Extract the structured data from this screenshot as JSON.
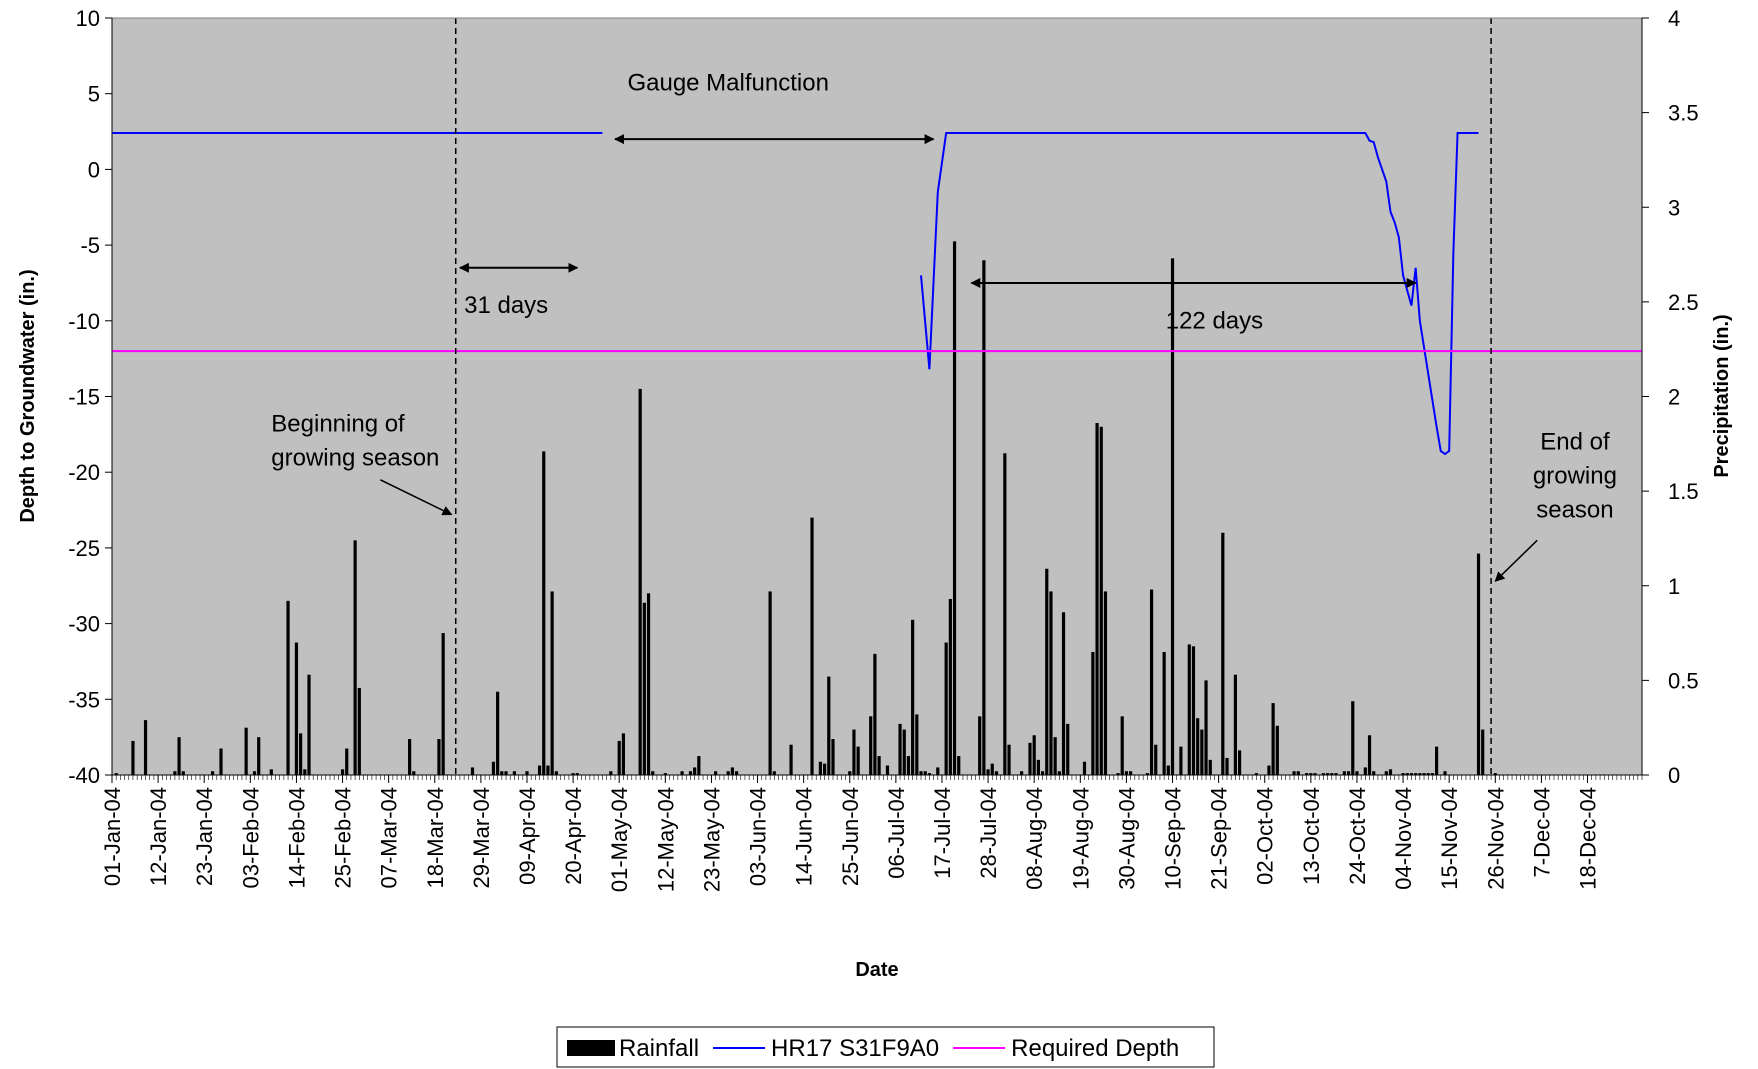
{
  "chart_data": {
    "type": "bar+line",
    "title": "",
    "xlabel": "Date",
    "ylabel_left": "Depth to Groundwater (in.)",
    "ylabel_right": "Precipitation (in.)",
    "x_range": [
      "2004-01-01",
      "2004-12-31"
    ],
    "ylim_left": [
      -40,
      10
    ],
    "ylim_right": [
      0,
      4
    ],
    "yticks_left": [
      10,
      5,
      0,
      -5,
      -10,
      -15,
      -20,
      -25,
      -30,
      -35,
      -40
    ],
    "yticks_right": [
      "4",
      "3.5",
      "3",
      "2.5",
      "2",
      "1.5",
      "1",
      "0.5",
      "0"
    ],
    "xtick_labels": [
      "01-Jan-04",
      "12-Jan-04",
      "23-Jan-04",
      "03-Feb-04",
      "14-Feb-04",
      "25-Feb-04",
      "07-Mar-04",
      "18-Mar-04",
      "29-Mar-04",
      "09-Apr-04",
      "20-Apr-04",
      "01-May-04",
      "12-May-04",
      "23-May-04",
      "03-Jun-04",
      "14-Jun-04",
      "25-Jun-04",
      "06-Jul-04",
      "17-Jul-04",
      "28-Jul-04",
      "08-Aug-04",
      "19-Aug-04",
      "30-Aug-04",
      "10-Sep-04",
      "21-Sep-04",
      "02-Oct-04",
      "13-Oct-04",
      "24-Oct-04",
      "04-Nov-04",
      "15-Nov-04",
      "26-Nov-04",
      "7-Dec-04",
      "18-Dec-04"
    ],
    "xtick_dates": [
      "2004-01-01",
      "2004-01-12",
      "2004-01-23",
      "2004-02-03",
      "2004-02-14",
      "2004-02-25",
      "2004-03-07",
      "2004-03-18",
      "2004-03-29",
      "2004-04-09",
      "2004-04-20",
      "2004-05-01",
      "2004-05-12",
      "2004-05-23",
      "2004-06-03",
      "2004-06-14",
      "2004-06-25",
      "2004-07-06",
      "2004-07-17",
      "2004-07-28",
      "2004-08-08",
      "2004-08-19",
      "2004-08-30",
      "2004-09-10",
      "2004-09-21",
      "2004-10-02",
      "2004-10-13",
      "2004-10-24",
      "2004-11-04",
      "2004-11-15",
      "2004-11-26",
      "2004-12-07",
      "2004-12-18"
    ],
    "grid": false,
    "legend_position": "bottom",
    "series": [
      {
        "name": "Rainfall",
        "type": "bar",
        "axis": "right",
        "color": "#000000",
        "points": [
          [
            "2004-01-02",
            0.01
          ],
          [
            "2004-01-06",
            0.18
          ],
          [
            "2004-01-09",
            0.29
          ],
          [
            "2004-01-16",
            0.02
          ],
          [
            "2004-01-17",
            0.2
          ],
          [
            "2004-01-18",
            0.02
          ],
          [
            "2004-01-25",
            0.02
          ],
          [
            "2004-01-27",
            0.14
          ],
          [
            "2004-02-02",
            0.25
          ],
          [
            "2004-02-04",
            0.02
          ],
          [
            "2004-02-05",
            0.2
          ],
          [
            "2004-02-08",
            0.03
          ],
          [
            "2004-02-12",
            0.92
          ],
          [
            "2004-02-14",
            0.7
          ],
          [
            "2004-02-15",
            0.22
          ],
          [
            "2004-02-16",
            0.03
          ],
          [
            "2004-02-17",
            0.53
          ],
          [
            "2004-02-25",
            0.03
          ],
          [
            "2004-02-26",
            0.14
          ],
          [
            "2004-02-28",
            1.24
          ],
          [
            "2004-02-29",
            0.46
          ],
          [
            "2004-03-12",
            0.19
          ],
          [
            "2004-03-13",
            0.02
          ],
          [
            "2004-03-19",
            0.19
          ],
          [
            "2004-03-20",
            0.75
          ],
          [
            "2004-03-27",
            0.04
          ],
          [
            "2004-04-01",
            0.07
          ],
          [
            "2004-04-02",
            0.44
          ],
          [
            "2004-04-03",
            0.02
          ],
          [
            "2004-04-04",
            0.02
          ],
          [
            "2004-04-06",
            0.02
          ],
          [
            "2004-04-09",
            0.02
          ],
          [
            "2004-04-12",
            0.05
          ],
          [
            "2004-04-13",
            1.71
          ],
          [
            "2004-04-14",
            0.05
          ],
          [
            "2004-04-15",
            0.97
          ],
          [
            "2004-04-16",
            0.02
          ],
          [
            "2004-04-20",
            0.01
          ],
          [
            "2004-04-21",
            0.01
          ],
          [
            "2004-04-29",
            0.02
          ],
          [
            "2004-05-01",
            0.18
          ],
          [
            "2004-05-02",
            0.22
          ],
          [
            "2004-05-06",
            2.04
          ],
          [
            "2004-05-07",
            0.91
          ],
          [
            "2004-05-08",
            0.96
          ],
          [
            "2004-05-09",
            0.02
          ],
          [
            "2004-05-12",
            0.01
          ],
          [
            "2004-05-16",
            0.02
          ],
          [
            "2004-05-18",
            0.02
          ],
          [
            "2004-05-19",
            0.04
          ],
          [
            "2004-05-20",
            0.1
          ],
          [
            "2004-05-24",
            0.02
          ],
          [
            "2004-05-27",
            0.02
          ],
          [
            "2004-05-28",
            0.04
          ],
          [
            "2004-05-29",
            0.02
          ],
          [
            "2004-06-06",
            0.97
          ],
          [
            "2004-06-07",
            0.02
          ],
          [
            "2004-06-11",
            0.16
          ],
          [
            "2004-06-16",
            1.36
          ],
          [
            "2004-06-18",
            0.07
          ],
          [
            "2004-06-19",
            0.06
          ],
          [
            "2004-06-20",
            0.52
          ],
          [
            "2004-06-21",
            0.19
          ],
          [
            "2004-06-25",
            0.02
          ],
          [
            "2004-06-26",
            0.24
          ],
          [
            "2004-06-27",
            0.15
          ],
          [
            "2004-06-30",
            0.31
          ],
          [
            "2004-07-01",
            0.64
          ],
          [
            "2004-07-02",
            0.1
          ],
          [
            "2004-07-04",
            0.05
          ],
          [
            "2004-07-07",
            0.27
          ],
          [
            "2004-07-08",
            0.24
          ],
          [
            "2004-07-09",
            0.1
          ],
          [
            "2004-07-10",
            0.82
          ],
          [
            "2004-07-11",
            0.32
          ],
          [
            "2004-07-12",
            0.02
          ],
          [
            "2004-07-13",
            0.02
          ],
          [
            "2004-07-14",
            0.01
          ],
          [
            "2004-07-16",
            0.04
          ],
          [
            "2004-07-18",
            0.7
          ],
          [
            "2004-07-19",
            0.93
          ],
          [
            "2004-07-20",
            2.82
          ],
          [
            "2004-07-21",
            0.1
          ],
          [
            "2004-07-26",
            0.31
          ],
          [
            "2004-07-27",
            2.72
          ],
          [
            "2004-07-28",
            0.03
          ],
          [
            "2004-07-29",
            0.06
          ],
          [
            "2004-07-30",
            0.02
          ],
          [
            "2004-08-01",
            1.7
          ],
          [
            "2004-08-02",
            0.16
          ],
          [
            "2004-08-05",
            0.02
          ],
          [
            "2004-08-07",
            0.17
          ],
          [
            "2004-08-08",
            0.21
          ],
          [
            "2004-08-09",
            0.08
          ],
          [
            "2004-08-10",
            0.02
          ],
          [
            "2004-08-11",
            1.09
          ],
          [
            "2004-08-12",
            0.97
          ],
          [
            "2004-08-13",
            0.2
          ],
          [
            "2004-08-14",
            0.02
          ],
          [
            "2004-08-15",
            0.86
          ],
          [
            "2004-08-16",
            0.27
          ],
          [
            "2004-08-20",
            0.07
          ],
          [
            "2004-08-22",
            0.65
          ],
          [
            "2004-08-23",
            1.86
          ],
          [
            "2004-08-24",
            1.84
          ],
          [
            "2004-08-25",
            0.97
          ],
          [
            "2004-08-28",
            0.01
          ],
          [
            "2004-08-29",
            0.31
          ],
          [
            "2004-08-30",
            0.02
          ],
          [
            "2004-08-31",
            0.02
          ],
          [
            "2004-09-04",
            0.01
          ],
          [
            "2004-09-05",
            0.98
          ],
          [
            "2004-09-06",
            0.16
          ],
          [
            "2004-09-08",
            0.65
          ],
          [
            "2004-09-09",
            0.05
          ],
          [
            "2004-09-10",
            2.73
          ],
          [
            "2004-09-12",
            0.15
          ],
          [
            "2004-09-14",
            0.69
          ],
          [
            "2004-09-15",
            0.68
          ],
          [
            "2004-09-16",
            0.3
          ],
          [
            "2004-09-17",
            0.24
          ],
          [
            "2004-09-18",
            0.5
          ],
          [
            "2004-09-19",
            0.08
          ],
          [
            "2004-09-22",
            1.28
          ],
          [
            "2004-09-23",
            0.09
          ],
          [
            "2004-09-25",
            0.53
          ],
          [
            "2004-09-26",
            0.13
          ],
          [
            "2004-09-30",
            0.01
          ],
          [
            "2004-10-03",
            0.05
          ],
          [
            "2004-10-04",
            0.38
          ],
          [
            "2004-10-05",
            0.26
          ],
          [
            "2004-10-09",
            0.02
          ],
          [
            "2004-10-10",
            0.02
          ],
          [
            "2004-10-12",
            0.01
          ],
          [
            "2004-10-13",
            0.01
          ],
          [
            "2004-10-14",
            0.01
          ],
          [
            "2004-10-16",
            0.01
          ],
          [
            "2004-10-17",
            0.01
          ],
          [
            "2004-10-18",
            0.01
          ],
          [
            "2004-10-19",
            0.01
          ],
          [
            "2004-10-21",
            0.02
          ],
          [
            "2004-10-22",
            0.02
          ],
          [
            "2004-10-23",
            0.39
          ],
          [
            "2004-10-24",
            0.02
          ],
          [
            "2004-10-26",
            0.04
          ],
          [
            "2004-10-27",
            0.21
          ],
          [
            "2004-10-28",
            0.02
          ],
          [
            "2004-10-31",
            0.02
          ],
          [
            "2004-11-01",
            0.03
          ],
          [
            "2004-11-04",
            0.01
          ],
          [
            "2004-11-05",
            0.01
          ],
          [
            "2004-11-06",
            0.01
          ],
          [
            "2004-11-07",
            0.01
          ],
          [
            "2004-11-08",
            0.01
          ],
          [
            "2004-11-09",
            0.01
          ],
          [
            "2004-11-10",
            0.01
          ],
          [
            "2004-11-11",
            0.01
          ],
          [
            "2004-11-12",
            0.15
          ],
          [
            "2004-11-14",
            0.02
          ],
          [
            "2004-11-22",
            1.17
          ],
          [
            "2004-11-23",
            0.24
          ],
          [
            "2004-11-26",
            0.01
          ]
        ]
      },
      {
        "name": "HR17 S31F9A0",
        "type": "line",
        "axis": "left",
        "color": "#0000ff",
        "segments": [
          [
            [
              "2004-01-01",
              2.4
            ],
            [
              "2004-04-27",
              2.4
            ]
          ],
          [
            [
              "2004-07-12",
              -7.0
            ],
            [
              "2004-07-14",
              -13.2
            ],
            [
              "2004-07-16",
              -1.5
            ],
            [
              "2004-07-18",
              2.4
            ],
            [
              "2004-10-26",
              2.4
            ],
            [
              "2004-10-27",
              1.9
            ],
            [
              "2004-10-28",
              1.8
            ],
            [
              "2004-10-29",
              0.8
            ],
            [
              "2004-10-31",
              -0.8
            ],
            [
              "2004-11-01",
              -2.8
            ],
            [
              "2004-11-02",
              -3.5
            ],
            [
              "2004-11-03",
              -4.5
            ],
            [
              "2004-11-04",
              -7.0
            ],
            [
              "2004-11-06",
              -9.0
            ],
            [
              "2004-11-07",
              -6.5
            ],
            [
              "2004-11-08",
              -10.0
            ],
            [
              "2004-11-10",
              -13.5
            ],
            [
              "2004-11-12",
              -17.0
            ],
            [
              "2004-11-13",
              -18.6
            ],
            [
              "2004-11-14",
              -18.8
            ],
            [
              "2004-11-15",
              -18.6
            ],
            [
              "2004-11-16",
              -5.5
            ],
            [
              "2004-11-17",
              2.4
            ],
            [
              "2004-11-22",
              2.4
            ]
          ]
        ]
      },
      {
        "name": "Required Depth",
        "type": "line",
        "axis": "left",
        "color": "#ff00ff",
        "points": [
          [
            "2004-01-01",
            -12
          ],
          [
            "2004-12-31",
            -12
          ]
        ]
      }
    ],
    "vertical_markers": [
      {
        "date": "2004-03-23",
        "style": "dashed"
      },
      {
        "date": "2004-11-25",
        "style": "dashed"
      }
    ],
    "annotations": [
      {
        "lines": [
          "Gauge Malfunction"
        ],
        "arrow": [
          "2004-04-30",
          "2004-07-15"
        ],
        "arrow_y": 2.0,
        "anchor_date": "2004-05-27",
        "y": 5.2,
        "align": "middle"
      },
      {
        "lines": [
          "31 days"
        ],
        "arrow": [
          "2004-03-24",
          "2004-04-21"
        ],
        "arrow_y": -6.5,
        "anchor_date": "2004-03-25",
        "y": -9.5,
        "align": "start"
      },
      {
        "lines": [
          "122 days"
        ],
        "arrow": [
          "2004-07-24",
          "2004-11-07"
        ],
        "arrow_y": -7.5,
        "anchor_date": "2004-09-20",
        "y": -10.5,
        "align": "middle"
      },
      {
        "lines": [
          "Beginning of",
          "growing season"
        ],
        "anchor_date": "2004-02-08",
        "y": -17.3,
        "align": "start",
        "pointer": {
          "from": [
            "2004-03-05",
            -20.5
          ],
          "to": [
            "2004-03-22",
            -22.8
          ]
        }
      },
      {
        "lines": [
          "End of",
          "growing",
          "season"
        ],
        "anchor_date": "2004-12-15",
        "y": -18.5,
        "align": "middle",
        "pointer": {
          "from": [
            "2004-12-06",
            -24.5
          ],
          "to": [
            "2004-11-26",
            -27.2
          ]
        }
      }
    ],
    "legend": [
      {
        "label": "Rainfall",
        "symbol": "bar",
        "color": "#000000"
      },
      {
        "label": "HR17 S31F9A0",
        "symbol": "line",
        "color": "#0000ff"
      },
      {
        "label": "Required Depth",
        "symbol": "line",
        "color": "#ff00ff"
      }
    ],
    "colors": {
      "plot_background": "#c0c0c0"
    }
  }
}
